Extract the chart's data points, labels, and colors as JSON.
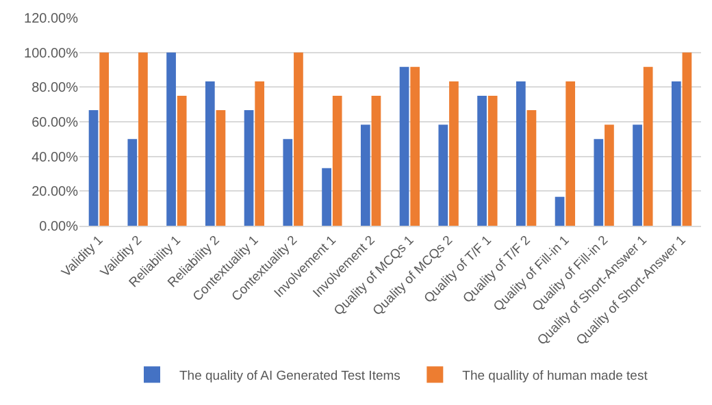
{
  "chart_data": {
    "type": "bar",
    "categories": [
      "Validity 1",
      "Validity 2",
      "Reliability 1",
      "Reliability 2",
      "Contextuality 1",
      "Contextuality 2",
      "Involvement 1",
      "Involvement 2",
      "Quality of MCQs 1",
      "Quality of MCQs 2",
      "Quality of T/F 1",
      "Quality of T/F 2",
      "Quality of Fill-in 1",
      "Quality of Fill-in 2",
      "Quality of Short-Answer 1",
      "Quality of Short-Answer 1"
    ],
    "series": [
      {
        "name": "The quality of AI Generated Test Items",
        "color": "#4472c4",
        "values": [
          66.7,
          50,
          100,
          83.3,
          66.7,
          50,
          33.3,
          58.3,
          91.7,
          58.3,
          75,
          83.3,
          16.7,
          50,
          58.3,
          83.3
        ]
      },
      {
        "name": "The quallity of human made test",
        "color": "#ed7d31",
        "values": [
          100,
          100,
          75,
          66.7,
          83.3,
          100,
          75,
          75,
          91.7,
          83.3,
          75,
          66.7,
          83.3,
          58.3,
          91.7,
          100
        ]
      }
    ],
    "ylim": [
      0,
      120
    ],
    "yticks": [
      {
        "value": 0,
        "label": "0.00%"
      },
      {
        "value": 20,
        "label": "20.00%"
      },
      {
        "value": 40,
        "label": "40.00%"
      },
      {
        "value": 60,
        "label": "60.00%"
      },
      {
        "value": 80,
        "label": "80.00%"
      },
      {
        "value": 100,
        "label": "100.00%"
      },
      {
        "value": 120,
        "label": "120.00%"
      }
    ],
    "grid": "y",
    "legend": "bottom"
  }
}
